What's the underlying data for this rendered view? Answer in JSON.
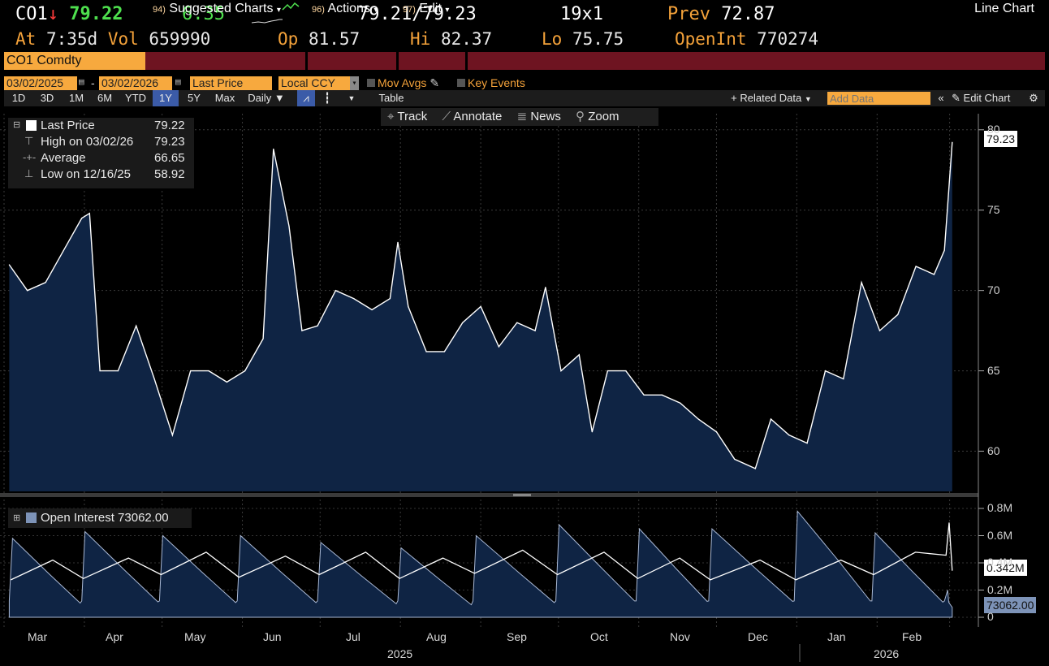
{
  "quote": {
    "ticker": "CO1",
    "direction_arrow": "↓",
    "last": "79.22",
    "change": "6.35",
    "bid_ask": "79.21/79.23",
    "size": "19x1",
    "prev_label": "Prev",
    "prev": "72.87",
    "at_label": "At",
    "time": "7:35d",
    "vol_label": "Vol",
    "vol": "659990",
    "op_label": "Op",
    "op": "81.57",
    "hi_label": "Hi",
    "hi": "82.37",
    "lo_label": "Lo",
    "lo": "75.75",
    "oi_label": "OpenInt",
    "oi": "770274"
  },
  "menubar": {
    "security": "CO1 Comdty",
    "suggested_num": "94)",
    "suggested": "Suggested Charts",
    "actions_num": "96)",
    "actions": "Actions",
    "edit_num": "97)",
    "edit": "Edit",
    "chart_type": "Line Chart"
  },
  "controls": {
    "start_date": "03/02/2025",
    "end_date": "03/02/2026",
    "field": "Last Price",
    "currency": "Local CCY",
    "mov_avgs": "Mov Avgs",
    "key_events": "Key Events"
  },
  "toolbar": {
    "ranges": [
      "1D",
      "3D",
      "1M",
      "6M",
      "YTD",
      "1Y",
      "5Y",
      "Max"
    ],
    "selected_range": "1Y",
    "frequency": "Daily",
    "table": "Table",
    "related_data": "+ Related Data",
    "add_data_placeholder": "Add Data",
    "edit_chart": "Edit Chart"
  },
  "chart_tools": {
    "track": "Track",
    "annotate": "Annotate",
    "news": "News",
    "zoom": "Zoom"
  },
  "legend_price": {
    "last_label": "Last Price",
    "last_value": "79.22",
    "high_label": "High on 03/02/26",
    "high_value": "79.23",
    "avg_label": "Average",
    "avg_value": "66.65",
    "low_label": "Low on 12/16/25",
    "low_value": "58.92"
  },
  "legend_oi": {
    "label": "Open Interest 73062.00"
  },
  "price_axis": {
    "ticks": [
      "80",
      "75",
      "70",
      "65",
      "60"
    ],
    "last_tag": "79.23"
  },
  "oi_axis": {
    "ticks": [
      "0.8M",
      "0.6M",
      "0.4M",
      "0.2M",
      "0"
    ],
    "tag1": "0.342M",
    "tag2": "73062.00"
  },
  "x_axis": {
    "months": [
      "Mar",
      "Apr",
      "May",
      "Jun",
      "Jul",
      "Aug",
      "Sep",
      "Oct",
      "Nov",
      "Dec",
      "Jan",
      "Feb"
    ],
    "years": [
      "2025",
      "2026"
    ]
  },
  "colors": {
    "area_fill": "#0f2444",
    "line": "#ffffff",
    "accent_orange": "#f7a93e",
    "menubar": "#6e1421"
  },
  "chart_data": [
    {
      "type": "area",
      "title": "Last Price",
      "x": [
        "2025-03-03",
        "2025-03-10",
        "2025-03-17",
        "2025-03-24",
        "2025-03-31",
        "2025-04-03",
        "2025-04-07",
        "2025-04-14",
        "2025-04-21",
        "2025-04-28",
        "2025-05-05",
        "2025-05-12",
        "2025-05-19",
        "2025-05-26",
        "2025-06-02",
        "2025-06-09",
        "2025-06-13",
        "2025-06-19",
        "2025-06-24",
        "2025-06-30",
        "2025-07-07",
        "2025-07-14",
        "2025-07-21",
        "2025-07-28",
        "2025-07-31",
        "2025-08-04",
        "2025-08-11",
        "2025-08-18",
        "2025-08-25",
        "2025-09-01",
        "2025-09-08",
        "2025-09-15",
        "2025-09-22",
        "2025-09-26",
        "2025-10-02",
        "2025-10-09",
        "2025-10-14",
        "2025-10-20",
        "2025-10-27",
        "2025-11-03",
        "2025-11-10",
        "2025-11-17",
        "2025-11-24",
        "2025-12-01",
        "2025-12-08",
        "2025-12-16",
        "2025-12-22",
        "2025-12-29",
        "2026-01-05",
        "2026-01-12",
        "2026-01-19",
        "2026-01-26",
        "2026-02-02",
        "2026-02-09",
        "2026-02-16",
        "2026-02-23",
        "2026-02-27",
        "2026-03-02"
      ],
      "y": [
        71.6,
        70.0,
        70.5,
        72.5,
        74.5,
        74.8,
        65.0,
        65.0,
        67.8,
        64.5,
        61.0,
        65.0,
        65.0,
        64.3,
        65.0,
        67.0,
        78.8,
        74.0,
        67.5,
        67.8,
        70.0,
        69.5,
        68.8,
        69.5,
        73.0,
        69.0,
        66.2,
        66.2,
        68.0,
        69.0,
        66.5,
        68.0,
        67.5,
        70.2,
        65.0,
        66.0,
        61.2,
        65.0,
        65.0,
        63.5,
        63.5,
        63.0,
        62.0,
        61.2,
        59.5,
        58.92,
        62.0,
        61.0,
        60.5,
        65.0,
        64.5,
        70.5,
        67.5,
        68.5,
        71.5,
        71.0,
        72.5,
        79.22
      ],
      "ylim": [
        57.5,
        81
      ],
      "ylabel": ""
    },
    {
      "type": "area",
      "title": "Open Interest",
      "x": [
        "2025-03-03",
        "2025-03-31",
        "2025-04-30",
        "2025-05-30",
        "2025-06-30",
        "2025-07-31",
        "2025-08-29",
        "2025-09-30",
        "2025-10-31",
        "2025-11-28",
        "2025-12-31",
        "2026-01-30",
        "2026-02-27",
        "2026-03-02"
      ],
      "series": [
        {
          "name": "Open Interest",
          "values": [
            580000,
            630000,
            600000,
            600000,
            550000,
            510000,
            600000,
            680000,
            650000,
            650000,
            780000,
            620000,
            200000,
            73062
          ]
        },
        {
          "name": "",
          "values": [
            290000,
            300000,
            330000,
            310000,
            330000,
            300000,
            340000,
            330000,
            300000,
            290000,
            290000,
            330000,
            480000,
            342000
          ]
        }
      ],
      "ylim": [
        0,
        0.85
      ],
      "yunit": "M"
    }
  ]
}
